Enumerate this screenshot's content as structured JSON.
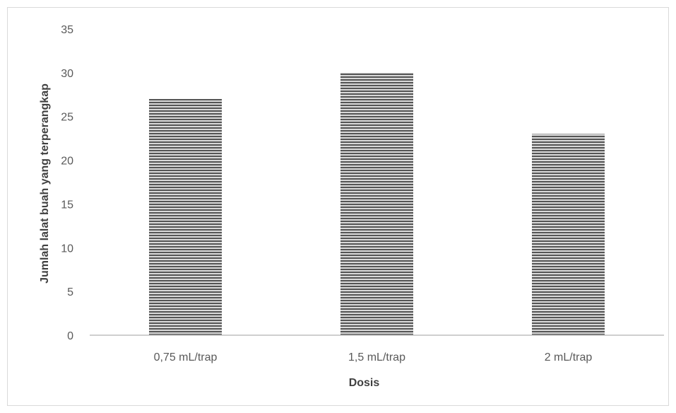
{
  "chart_data": {
    "type": "bar",
    "title": "",
    "xlabel": "Dosis",
    "ylabel": "Jumlah lalat buah yang terperangkap",
    "categories": [
      "0,75 mL/trap",
      "1,5 mL/trap",
      "2 mL/trap"
    ],
    "series": [
      {
        "values": [
          27,
          30,
          23
        ]
      }
    ],
    "ylim": [
      0,
      35
    ],
    "yticks": [
      0,
      5,
      10,
      15,
      20,
      25,
      30,
      35
    ],
    "grid": false,
    "legend": "none",
    "bar_pattern": "horizontal-stripes",
    "bar_color": "#555555",
    "bar_stripe_color": "#d9d9d9",
    "axis_color": "#bfbfbf"
  }
}
